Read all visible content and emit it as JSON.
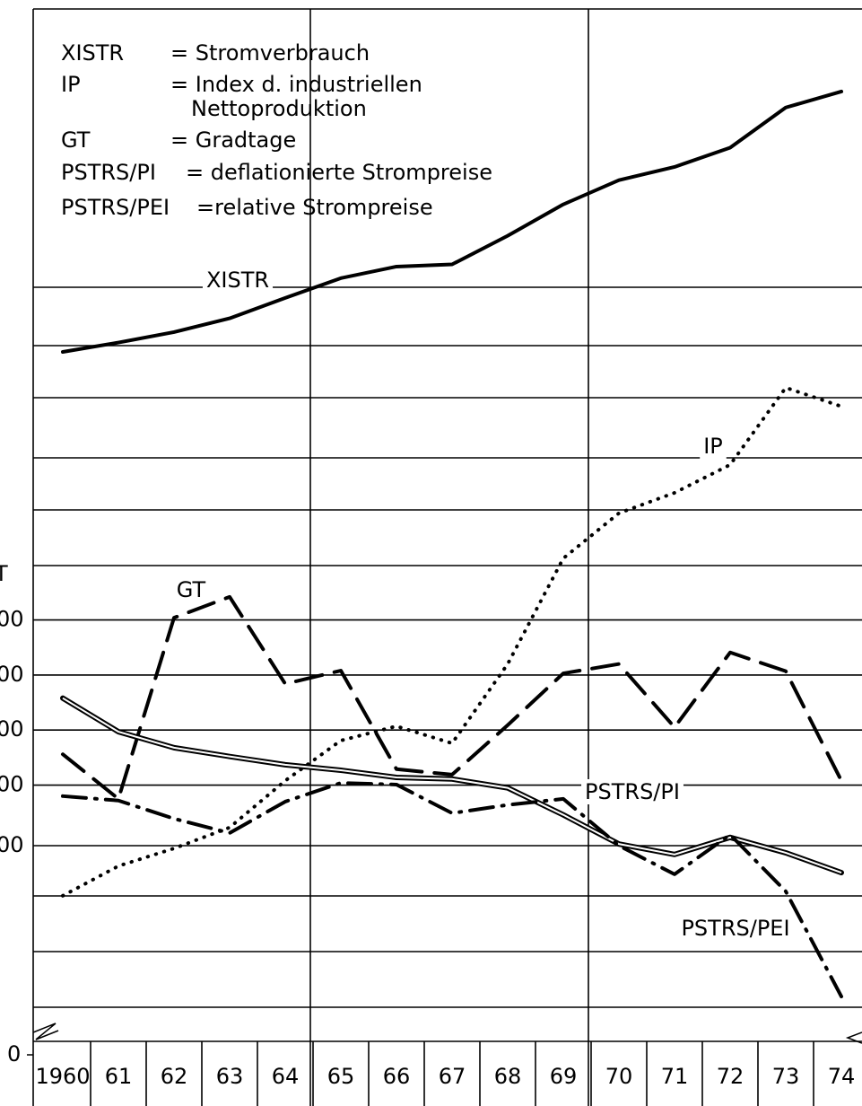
{
  "chart_data": {
    "type": "line",
    "y_label": "T",
    "categories": [
      "1960",
      "61",
      "62",
      "63",
      "64",
      "65",
      "66",
      "67",
      "68",
      "69",
      "70",
      "71",
      "72",
      "73",
      "74"
    ],
    "ylim": [
      0,
      19
    ],
    "yticks": [
      0,
      {
        "value": 3.8,
        "label": "00"
      },
      {
        "value": 4.9,
        "label": "00"
      },
      {
        "value": 5.9,
        "label": "00"
      },
      {
        "value": 6.9,
        "label": "00"
      },
      {
        "value": 7.9,
        "label": "00"
      }
    ],
    "legend_text": [
      {
        "abbr": "XISTR",
        "text": "= Stromverbrauch"
      },
      {
        "abbr": "IP",
        "text": "= Index d. industriellen",
        "text2": "Nettoproduktion"
      },
      {
        "abbr": "GT",
        "text": "= Gradtage"
      },
      {
        "abbr": "PSTRS/PI",
        "text": "= deflationierte Strompreise"
      },
      {
        "abbr": "PSTRS/PEI",
        "text": "=relative Strompreise"
      }
    ],
    "series": [
      {
        "name": "XISTR",
        "color": "#000000",
        "style": "solid",
        "values": [
          12.77,
          12.94,
          13.13,
          13.38,
          13.75,
          14.11,
          14.32,
          14.36,
          14.88,
          15.45,
          15.89,
          16.13,
          16.48,
          17.21,
          17.5
        ]
      },
      {
        "name": "IP",
        "color": "#000000",
        "style": "dotted",
        "values": [
          2.89,
          3.43,
          3.75,
          4.13,
          4.98,
          5.71,
          5.97,
          5.66,
          7.1,
          9.02,
          9.84,
          10.21,
          10.72,
          12.12,
          11.78
        ]
      },
      {
        "name": "GT",
        "color": "#000000",
        "style": "dashed",
        "values": [
          5.46,
          4.65,
          7.94,
          8.32,
          6.74,
          6.98,
          5.19,
          5.09,
          5.99,
          6.93,
          7.1,
          5.95,
          7.31,
          6.97,
          4.98
        ]
      },
      {
        "name": "PSTRS/PI",
        "color": "#000000",
        "style": "double",
        "values": [
          6.48,
          5.87,
          5.58,
          5.42,
          5.27,
          5.17,
          5.04,
          5.01,
          4.85,
          4.36,
          3.83,
          3.64,
          3.95,
          3.67,
          3.31
        ]
      },
      {
        "name": "PSTRS/PEI",
        "color": "#000000",
        "style": "dashdot",
        "values": [
          4.7,
          4.62,
          4.29,
          4.03,
          4.6,
          4.94,
          4.91,
          4.39,
          4.54,
          4.65,
          3.8,
          3.28,
          4.0,
          2.97,
          1.06
        ]
      }
    ]
  }
}
